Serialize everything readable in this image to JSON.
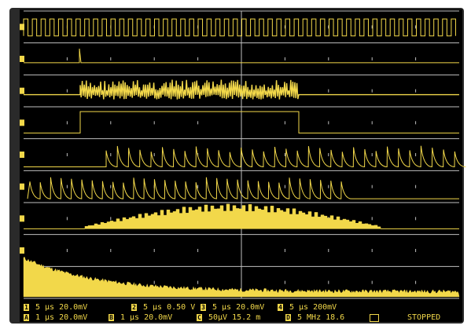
{
  "status_rows": [
    [
      {
        "badge": "1",
        "text": "5 μs 20.0mV"
      },
      {
        "badge": "2",
        "text": "5 μs 0.50 V"
      },
      {
        "badge": "3",
        "text": "5 μs 20.0mV"
      },
      {
        "badge": "4",
        "text": "5 μs 200mV"
      }
    ],
    [
      {
        "badge": "A",
        "text": "1 μs 20.0mV"
      },
      {
        "badge": "B",
        "text": "1 μs 20.0mV"
      },
      {
        "badge": "C",
        "text": "50μV 15.2 m"
      },
      {
        "badge": "D",
        "text": "5 MHz 18.6"
      }
    ]
  ],
  "stopped_label": "STOPPED",
  "colors": {
    "trace": "#f2d84a",
    "grid": "#bfbfbf",
    "background": "#000000"
  }
}
